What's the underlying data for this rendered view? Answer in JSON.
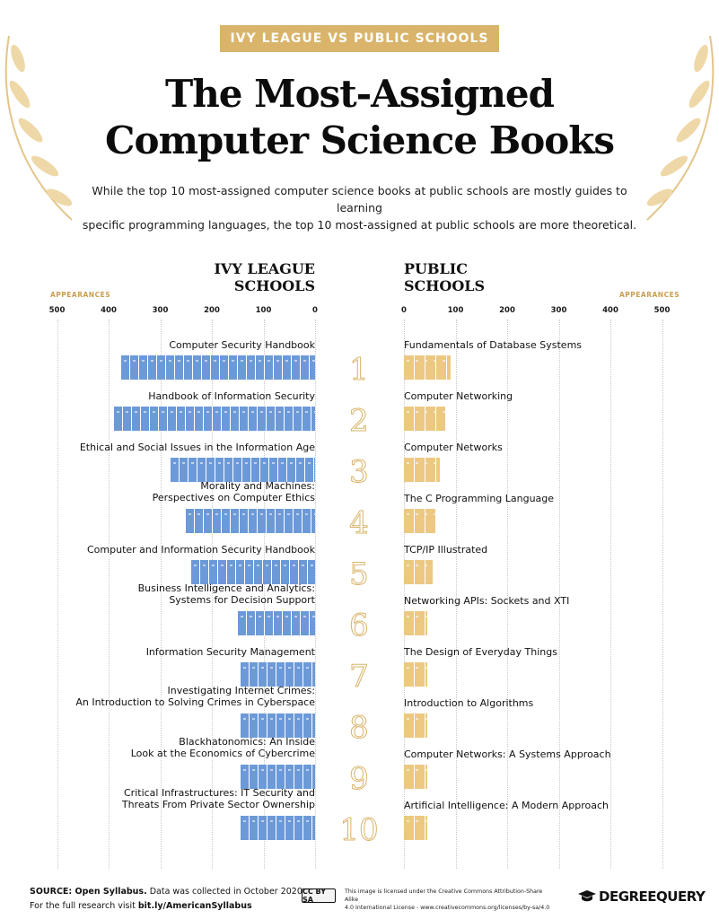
{
  "banner": "IVY LEAGUE VS PUBLIC SCHOOLS",
  "title_line1": "The Most-Assigned",
  "title_line2": "Computer Science Books",
  "subtitle_line1": "While the top 10 most-assigned computer science books at public schools are mostly guides to learning",
  "subtitle_line2": "specific programming languages, the top 10 most-assigned at public schools are more theoretical.",
  "footer": {
    "source_label": "SOURCE: Open Syllabus.",
    "source_text": "Data was collected in October 2020.",
    "research_text": "For the full research visit",
    "research_link": "bit.ly/AmericanSyllabus",
    "cc_badge": "CC BY SA",
    "license_line1": "This image is licensed under the Creative Commons Attribution-Share Alike",
    "license_line2": "4.0 International License - www.creativecommons.org/licenses/by-sa/4.0",
    "logo": "DEGREEQUERY"
  },
  "colors": {
    "ivy": "#6c9ad8",
    "public": "#ecc883",
    "gold": "#d9b46a"
  },
  "chart_data": {
    "type": "bar",
    "orientation": "horizontal",
    "ivy_heading_line1": "IVY LEAGUE",
    "ivy_heading_line2": "SCHOOLS",
    "public_heading_line1": "PUBLIC",
    "public_heading_line2": "SCHOOLS",
    "axis_label": "APPEARANCES",
    "ticks": [
      0,
      100,
      200,
      300,
      400,
      500
    ],
    "xlim": [
      0,
      500
    ],
    "ranks": [
      "1",
      "2",
      "3",
      "4",
      "5",
      "6",
      "7",
      "8",
      "9",
      "10"
    ],
    "series": [
      {
        "name": "IVY LEAGUE SCHOOLS",
        "direction": "left",
        "items": [
          {
            "label": [
              "Computer Security Handbook"
            ],
            "value": 375
          },
          {
            "label": [
              "Handbook of Information Security"
            ],
            "value": 390
          },
          {
            "label": [
              "Ethical and Social Issues in the Information Age"
            ],
            "value": 280
          },
          {
            "label": [
              "Morality and Machines:",
              "Perspectives on Computer Ethics"
            ],
            "value": 250
          },
          {
            "label": [
              "Computer and Information Security Handbook"
            ],
            "value": 240
          },
          {
            "label": [
              "Business Intelligence and Analytics:",
              "Systems for Decision Support"
            ],
            "value": 150
          },
          {
            "label": [
              "Information Security Management"
            ],
            "value": 145
          },
          {
            "label": [
              "Investigating Internet Crimes:",
              "An Introduction to Solving Crimes in Cyberspace"
            ],
            "value": 145
          },
          {
            "label": [
              "Blackhatonomics: An Inside",
              "Look at the Economics of Cybercrime"
            ],
            "value": 145
          },
          {
            "label": [
              "Critical Infrastructures: IT Security and",
              "Threats From Private Sector Ownership"
            ],
            "value": 145
          }
        ]
      },
      {
        "name": "PUBLIC SCHOOLS",
        "direction": "right",
        "items": [
          {
            "label": [
              "Fundamentals of Database Systems"
            ],
            "value": 90
          },
          {
            "label": [
              "Computer Networking"
            ],
            "value": 80
          },
          {
            "label": [
              "Computer Networks"
            ],
            "value": 70
          },
          {
            "label": [
              "The C Programming Language"
            ],
            "value": 60
          },
          {
            "label": [
              "TCP/IP Illustrated"
            ],
            "value": 55
          },
          {
            "label": [
              "Networking APIs: Sockets and XTI"
            ],
            "value": 45
          },
          {
            "label": [
              "The Design of Everyday Things"
            ],
            "value": 45
          },
          {
            "label": [
              "Introduction to Algorithms"
            ],
            "value": 45
          },
          {
            "label": [
              "Computer Networks: A Systems Approach"
            ],
            "value": 45
          },
          {
            "label": [
              "Artificial Intelligence: A Modern Approach"
            ],
            "value": 45
          }
        ]
      }
    ]
  }
}
